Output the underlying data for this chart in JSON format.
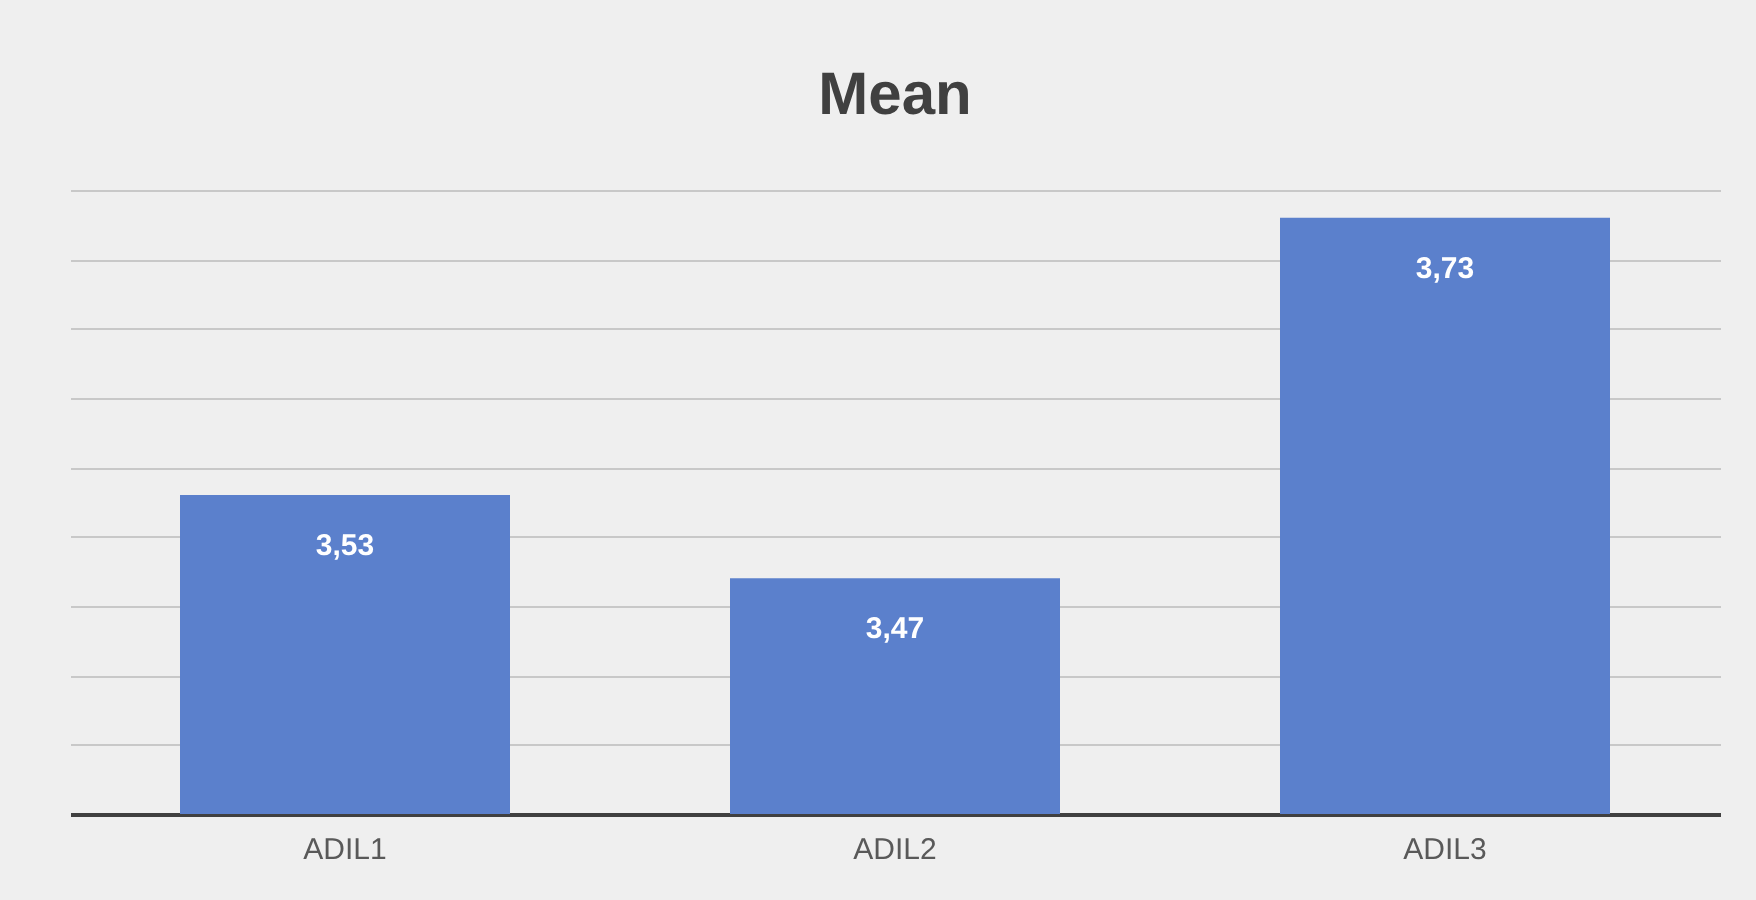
{
  "chart_data": {
    "type": "bar",
    "title": "Mean",
    "categories": [
      "ADIL1",
      "ADIL2",
      "ADIL3"
    ],
    "series": [
      {
        "color": "#5b80cc",
        "values": [
          3.53,
          3.47,
          3.73
        ],
        "value_labels": [
          "3,53",
          "3,47",
          "3,73"
        ]
      }
    ],
    "ylim": [
      3.3,
      3.75
    ],
    "yticks": [
      3.3,
      3.35,
      3.4,
      3.45,
      3.5,
      3.55,
      3.6,
      3.65,
      3.7,
      3.75
    ],
    "grid": "y",
    "tick_labels": "x"
  }
}
